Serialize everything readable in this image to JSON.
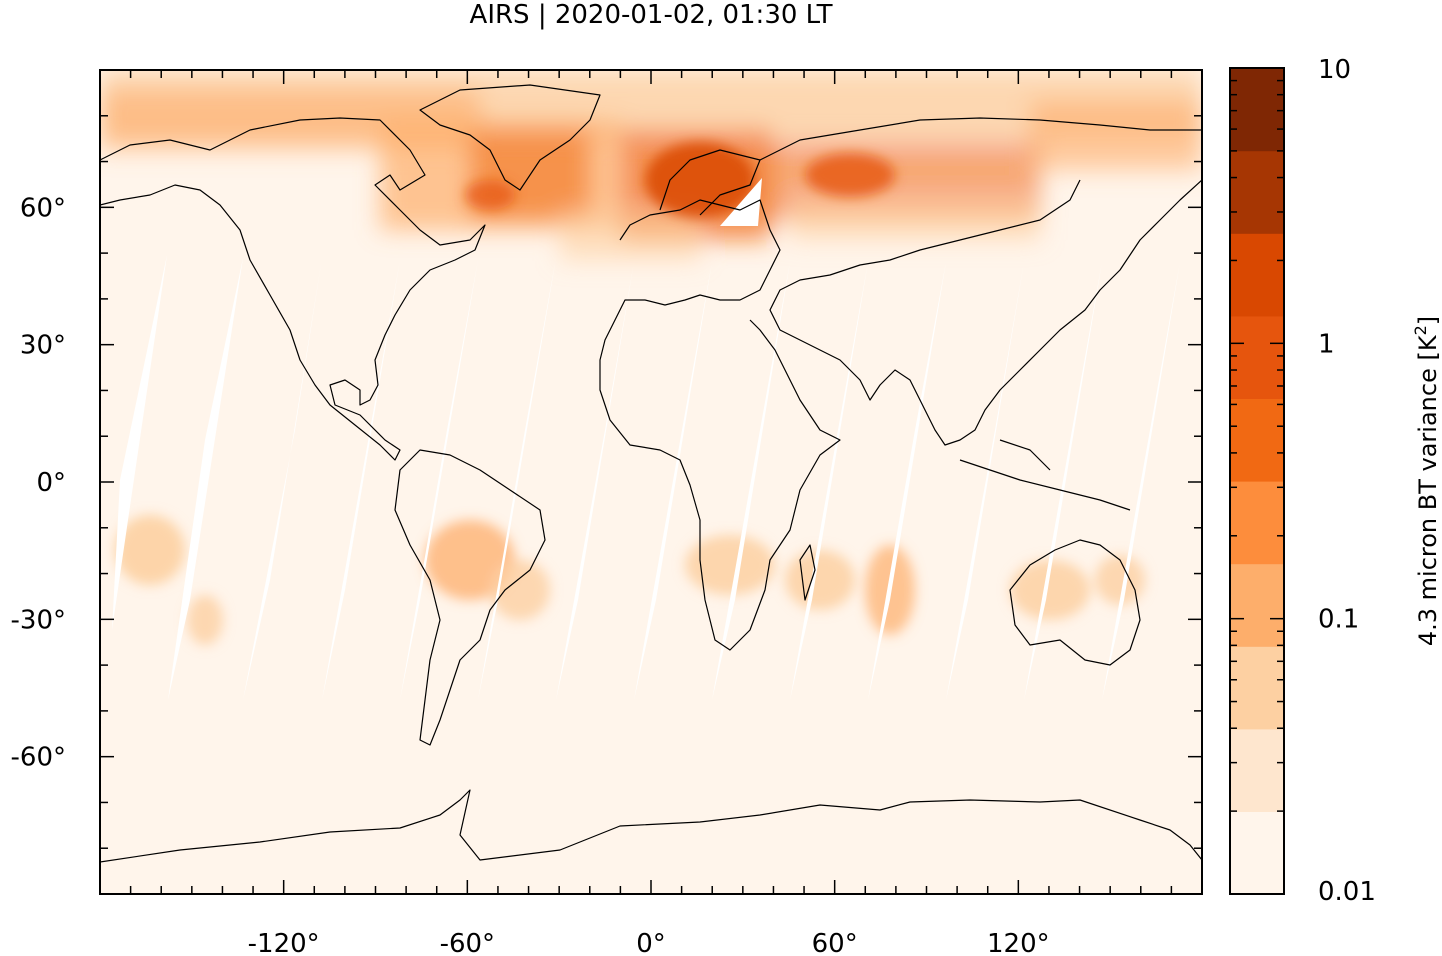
{
  "title": "AIRS | 2020-01-02, 01:30 LT",
  "map": {
    "projection": "plate carree",
    "lon_range": [
      -180,
      180
    ],
    "lat_range": [
      -90,
      90
    ],
    "xticks": [
      {
        "value": -120,
        "label": "-120°"
      },
      {
        "value": -60,
        "label": "-60°"
      },
      {
        "value": 0,
        "label": "0°"
      },
      {
        "value": 60,
        "label": "60°"
      },
      {
        "value": 120,
        "label": "120°"
      }
    ],
    "yticks": [
      {
        "value": 60,
        "label": "60°"
      },
      {
        "value": 30,
        "label": "30°"
      },
      {
        "value": 0,
        "label": "0°"
      },
      {
        "value": -30,
        "label": "-30°"
      },
      {
        "value": -60,
        "label": "-60°"
      }
    ],
    "background_color": "#fff5eb"
  },
  "colorbar": {
    "label_main": "4.3 micron BT variance [K",
    "label_sup": "2",
    "label_end": "]",
    "scale": "log",
    "range": [
      0.01,
      10
    ],
    "ticks": [
      {
        "value": 10,
        "label": "10"
      },
      {
        "value": 1,
        "label": "1"
      },
      {
        "value": 0.1,
        "label": "0.1"
      },
      {
        "value": 0.01,
        "label": "0.01"
      }
    ],
    "colors": [
      "#fff5eb",
      "#fee6ce",
      "#fdd0a2",
      "#fdae6b",
      "#fd8d3c",
      "#f16913",
      "#e6550d",
      "#d94801",
      "#a63603",
      "#7f2704"
    ]
  },
  "chart_data": {
    "type": "heatmap",
    "title": "AIRS | 2020-01-02, 01:30 LT",
    "xlabel": "",
    "ylabel": "",
    "colorbar_label": "4.3 micron BT variance [K²]",
    "xlim": [
      -180,
      180
    ],
    "ylim": [
      -90,
      90
    ],
    "color_scale": "log",
    "color_range": [
      0.01,
      10
    ],
    "regions": [
      {
        "lon": [
          -180,
          180
        ],
        "lat": [
          65,
          90
        ],
        "value": 0.3
      },
      {
        "lon": [
          -60,
          -20
        ],
        "lat": [
          55,
          75
        ],
        "value": 1.0
      },
      {
        "lon": [
          -10,
          40
        ],
        "lat": [
          50,
          72
        ],
        "value": 3.0
      },
      {
        "lon": [
          40,
          110
        ],
        "lat": [
          55,
          70
        ],
        "value": 2.0
      },
      {
        "lon": [
          100,
          180
        ],
        "lat": [
          60,
          80
        ],
        "value": 0.8
      },
      {
        "lon": [
          -150,
          -120
        ],
        "lat": [
          -10,
          -30
        ],
        "value": 0.15
      },
      {
        "lon": [
          -70,
          -30
        ],
        "lat": [
          -10,
          -30
        ],
        "value": 0.2
      },
      {
        "lon": [
          10,
          40
        ],
        "lat": [
          -10,
          -30
        ],
        "value": 0.12
      },
      {
        "lon": [
          50,
          80
        ],
        "lat": [
          -15,
          -35
        ],
        "value": 0.15
      },
      {
        "lon": [
          120,
          150
        ],
        "lat": [
          -15,
          -35
        ],
        "value": 0.15
      }
    ]
  }
}
